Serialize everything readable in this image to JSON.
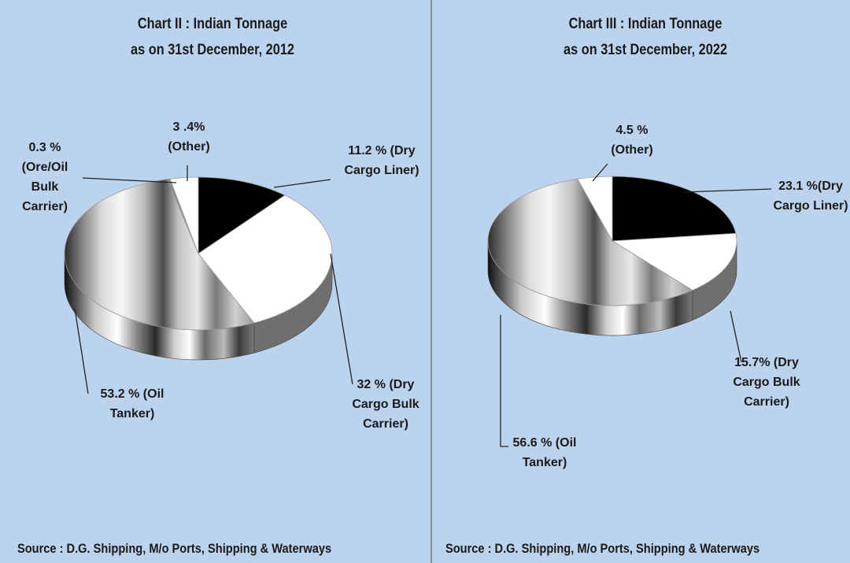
{
  "chart_data": [
    {
      "type": "pie",
      "title": [
        "Chart II : Indian Tonnage",
        "as on 31st December, 2012"
      ],
      "source": "Source : D.G. Shipping, M/o Ports, Shipping & Waterways",
      "slices": [
        {
          "name": "Dry Cargo Liner",
          "value": 11.2,
          "label": [
            "11.2 % (Dry",
            "Cargo Liner)"
          ]
        },
        {
          "name": "Dry Cargo Bulk Carrier",
          "value": 32,
          "label": [
            "32 % (Dry",
            "Cargo Bulk",
            "Carrier)"
          ]
        },
        {
          "name": "Oil Tanker",
          "value": 53.2,
          "label": [
            "53.2 % (Oil",
            "Tanker)"
          ]
        },
        {
          "name": "Ore/Oil Bulk Carrier",
          "value": 0.3,
          "label": [
            "0.3 %",
            "(Ore/Oil",
            "Bulk",
            "Carrier)"
          ]
        },
        {
          "name": "Other",
          "value": 3.4,
          "label": [
            "3 .4%",
            "(Other)"
          ]
        }
      ]
    },
    {
      "type": "pie",
      "title": [
        "Chart III : Indian Tonnage",
        "as on 31st December, 2022"
      ],
      "source": "Source : D.G. Shipping, M/o Ports, Shipping & Waterways",
      "slices": [
        {
          "name": "Dry Cargo Liner",
          "value": 23.1,
          "label": [
            "23.1 %(Dry",
            "Cargo Liner)"
          ]
        },
        {
          "name": "Dry Cargo Bulk Carrier",
          "value": 15.7,
          "label": [
            "15.7% (Dry",
            "Cargo Bulk",
            "Carrier)"
          ]
        },
        {
          "name": "Oil Tanker",
          "value": 56.6,
          "label": [
            "56.6  % (Oil",
            "Tanker)"
          ]
        },
        {
          "name": "Other",
          "value": 4.5,
          "label": [
            "4.5 %",
            "(Other)"
          ]
        }
      ]
    }
  ],
  "colors": {
    "dry_cargo_liner": "#000000",
    "dry_cargo_bulk_carrier": "#ffffff",
    "oil_tanker": "metallic-gray-gradient",
    "ore_oil_bulk_carrier": "#8c8c8c",
    "other": "#ffffff",
    "background": "#bcd3ee"
  }
}
